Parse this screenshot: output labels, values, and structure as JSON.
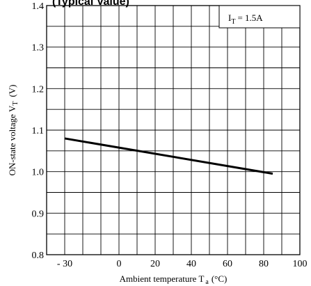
{
  "chart_data": {
    "type": "line",
    "title": "(Typical Value)",
    "xlabel": "Ambient temperature T",
    "xlabel_sub": "a",
    "xlabel_unit": "(°C)",
    "ylabel": "ON-state voltage V",
    "ylabel_sub": "T",
    "ylabel_unit": "(V)",
    "annotation": {
      "main": "I",
      "sub": "T",
      "rest": "= 1.5A"
    },
    "xlim": [
      -40,
      100
    ],
    "ylim": [
      0.8,
      1.4
    ],
    "x_ticks": [
      -30,
      0,
      20,
      40,
      60,
      80,
      100
    ],
    "x_tick_labels": [
      "- 30",
      "0",
      "20",
      "40",
      "60",
      "80",
      "100"
    ],
    "y_ticks": [
      0.8,
      0.9,
      1.0,
      1.1,
      1.2,
      1.3,
      1.4
    ],
    "y_tick_labels": [
      "0.8",
      "0.9",
      "1.0",
      "1.1",
      "1.2",
      "1.3",
      "1.4"
    ],
    "grid": true,
    "series": [
      {
        "x": [
          -30,
          85
        ],
        "y": [
          1.08,
          0.995
        ]
      }
    ]
  }
}
